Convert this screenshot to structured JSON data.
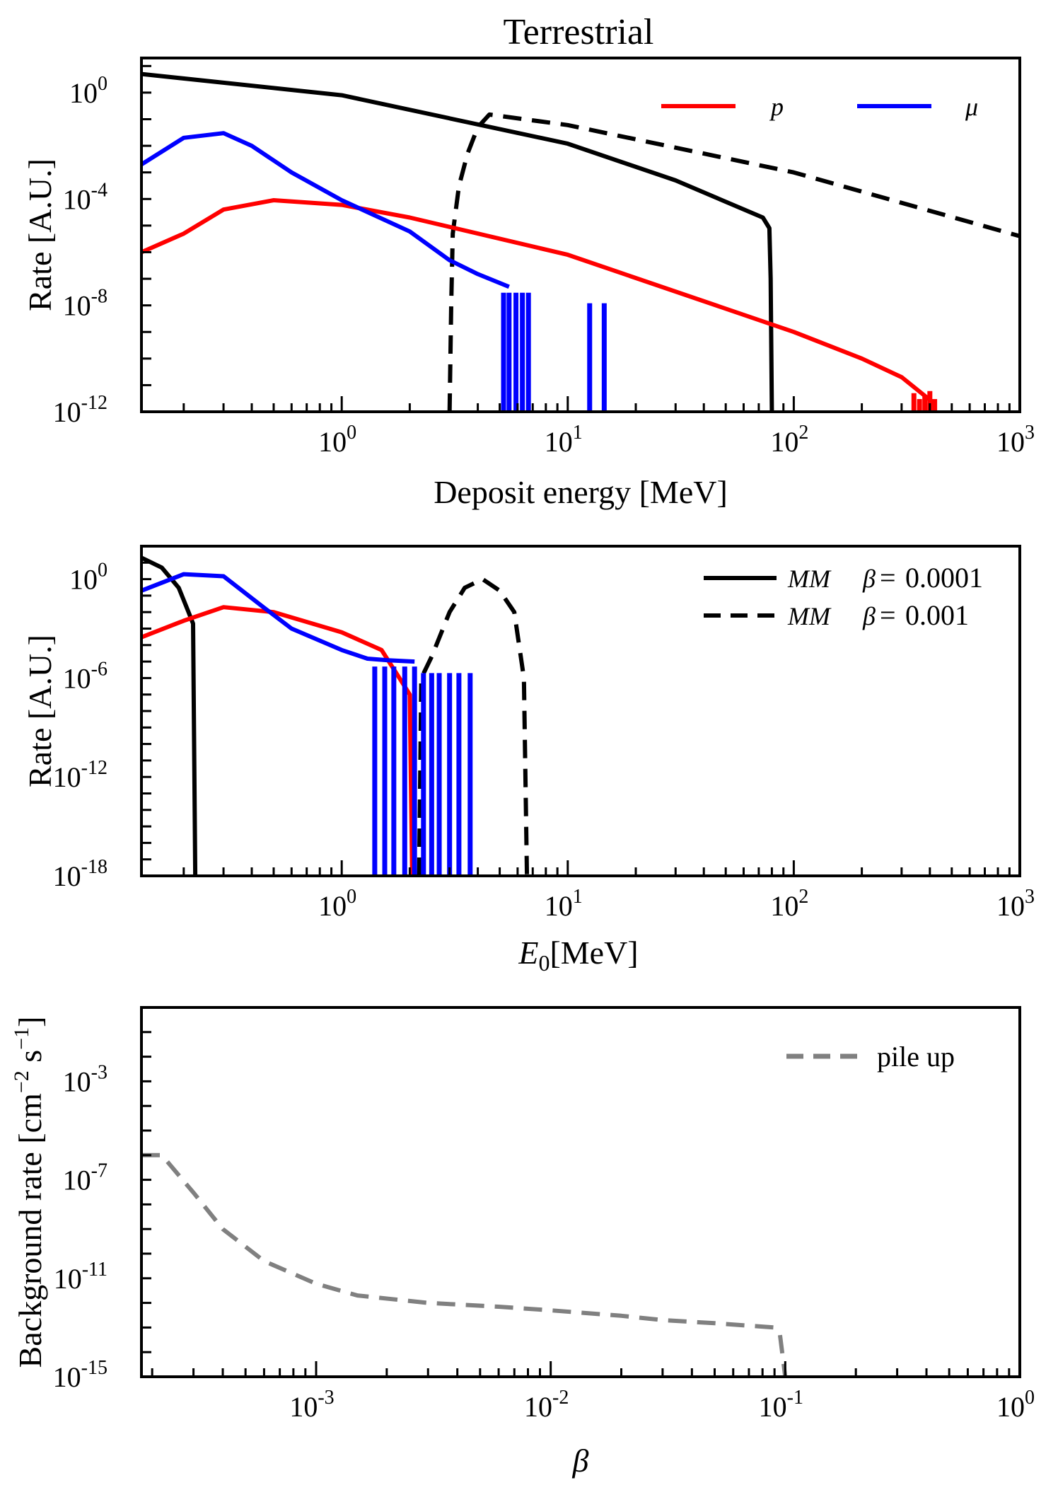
{
  "chart_data": [
    {
      "type": "line",
      "title": "Terrestrial",
      "xlabel": "Deposit energy [MeV]",
      "ylabel": "Rate [A.U.]",
      "xscale": "log",
      "yscale": "log",
      "xlim": [
        0.13,
        1000
      ],
      "ylim": [
        1e-12,
        20
      ],
      "xticks": [
        1,
        10,
        100,
        1000
      ],
      "xtick_labels": [
        {
          "base": "10",
          "exp": "0"
        },
        {
          "base": "10",
          "exp": "1"
        },
        {
          "base": "10",
          "exp": "2"
        },
        {
          "base": "10",
          "exp": "3"
        }
      ],
      "yticks": [
        1e-12,
        1e-08,
        0.0001,
        1
      ],
      "ytick_labels": [
        {
          "base": "10",
          "exp": "-12"
        },
        {
          "base": "10",
          "exp": "-8"
        },
        {
          "base": "10",
          "exp": "-4"
        },
        {
          "base": "10",
          "exp": "0"
        }
      ],
      "legend": {
        "position": "top-right",
        "entries": [
          {
            "label": "p",
            "color": "#ff0000",
            "style": "solid"
          },
          {
            "label": "μ",
            "color": "#0000ff",
            "style": "solid"
          }
        ]
      },
      "series": [
        {
          "key": "mm1",
          "color": "#000000",
          "style": "solid",
          "points": [
            [
              0.13,
              5
            ],
            [
              1,
              0.8
            ],
            [
              10,
              0.012
            ],
            [
              30,
              0.0005
            ],
            [
              73,
              2e-05
            ],
            [
              78,
              8e-06
            ],
            [
              79,
              1e-07
            ],
            [
              80,
              1e-12
            ]
          ]
        },
        {
          "key": "mm2",
          "color": "#000000",
          "style": "dashed",
          "points": [
            [
              3.0,
              1e-12
            ],
            [
              3.05,
              1e-08
            ],
            [
              3.1,
              5e-06
            ],
            [
              3.3,
              0.0003
            ],
            [
              3.6,
              0.005
            ],
            [
              4.0,
              0.05
            ],
            [
              4.5,
              0.15
            ],
            [
              10,
              0.06
            ],
            [
              100,
              0.001
            ],
            [
              1000,
              4e-06
            ]
          ]
        },
        {
          "key": "p",
          "color": "#ff0000",
          "style": "solid",
          "points": [
            [
              0.13,
              1e-06
            ],
            [
              0.2,
              5e-06
            ],
            [
              0.3,
              4e-05
            ],
            [
              0.5,
              9e-05
            ],
            [
              1,
              6e-05
            ],
            [
              2,
              2e-05
            ],
            [
              10,
              8e-07
            ],
            [
              100,
              1e-09
            ],
            [
              200,
              1e-10
            ],
            [
              300,
              2e-11
            ],
            [
              420,
              2e-12
            ]
          ],
          "spikes": [
            [
              340,
              5e-12
            ],
            [
              360,
              3e-12
            ],
            [
              380,
              4e-12
            ],
            [
              400,
              6e-12
            ],
            [
              420,
              3e-12
            ]
          ]
        },
        {
          "key": "mu",
          "color": "#0000ff",
          "style": "solid",
          "points": [
            [
              0.13,
              0.002
            ],
            [
              0.2,
              0.02
            ],
            [
              0.3,
              0.03
            ],
            [
              0.4,
              0.01
            ],
            [
              0.6,
              0.001
            ],
            [
              1,
              9e-05
            ],
            [
              2,
              6e-06
            ],
            [
              3,
              5e-07
            ],
            [
              4,
              1.5e-07
            ],
            [
              5.5,
              5e-08
            ]
          ],
          "spikes": [
            [
              5.2,
              3e-08
            ],
            [
              5.5,
              3e-08
            ],
            [
              5.9,
              3e-08
            ],
            [
              6.3,
              3e-08
            ],
            [
              6.7,
              3e-08
            ],
            [
              12.5,
              1.2e-08
            ],
            [
              14.5,
              1.2e-08
            ]
          ]
        }
      ]
    },
    {
      "type": "line",
      "xlabel_main": "E",
      "xlabel_sub": "0",
      "xlabel_rest": "[MeV]",
      "ylabel": "Rate [A.U.]",
      "xscale": "log",
      "yscale": "log",
      "xlim": [
        0.13,
        1000
      ],
      "ylim": [
        1e-18,
        100
      ],
      "xticks": [
        1,
        10,
        100,
        1000
      ],
      "xtick_labels": [
        {
          "base": "10",
          "exp": "0"
        },
        {
          "base": "10",
          "exp": "1"
        },
        {
          "base": "10",
          "exp": "2"
        },
        {
          "base": "10",
          "exp": "3"
        }
      ],
      "yticks": [
        1e-18,
        1e-12,
        1e-06,
        1
      ],
      "ytick_labels": [
        {
          "base": "10",
          "exp": "-18"
        },
        {
          "base": "10",
          "exp": "-12"
        },
        {
          "base": "10",
          "exp": "-6"
        },
        {
          "base": "10",
          "exp": "0"
        }
      ],
      "legend": {
        "position": "top-right",
        "entries": [
          {
            "label_it": "MM",
            "label_beta": "β",
            "label_eq": "=",
            "label_val": "0.0001",
            "color": "#000000",
            "style": "solid"
          },
          {
            "label_it": "MM",
            "label_beta": "β",
            "label_eq": "=",
            "label_val": "0.001",
            "color": "#000000",
            "style": "dashed"
          }
        ]
      },
      "series": [
        {
          "key": "mm1",
          "color": "#000000",
          "style": "solid",
          "points": [
            [
              0.13,
              20
            ],
            [
              0.16,
              5
            ],
            [
              0.19,
              0.3
            ],
            [
              0.21,
              0.01
            ],
            [
              0.22,
              0.002
            ],
            [
              0.225,
              1e-18
            ]
          ]
        },
        {
          "key": "mm2",
          "color": "#000000",
          "style": "dashed",
          "points": [
            [
              2.2,
              1e-18
            ],
            [
              2.25,
              1e-06
            ],
            [
              2.5,
              2e-05
            ],
            [
              3,
              0.01
            ],
            [
              3.5,
              0.3
            ],
            [
              4.2,
              1
            ],
            [
              5,
              0.2
            ],
            [
              5.8,
              0.01
            ],
            [
              6.4,
              1e-06
            ],
            [
              6.6,
              1e-18
            ]
          ]
        },
        {
          "key": "p",
          "color": "#ff0000",
          "style": "solid",
          "points": [
            [
              0.13,
              0.0003
            ],
            [
              0.2,
              0.003
            ],
            [
              0.3,
              0.02
            ],
            [
              0.5,
              0.01
            ],
            [
              1,
              0.0006
            ],
            [
              1.5,
              5e-05
            ],
            [
              1.8,
              1e-06
            ],
            [
              2.0,
              1e-07
            ],
            [
              2.05,
              1e-18
            ]
          ]
        },
        {
          "key": "mu",
          "color": "#0000ff",
          "style": "solid",
          "points": [
            [
              0.13,
              0.2
            ],
            [
              0.2,
              2
            ],
            [
              0.3,
              1.5
            ],
            [
              0.45,
              0.02
            ],
            [
              0.6,
              0.001
            ],
            [
              1,
              5e-05
            ],
            [
              1.3,
              1.5e-05
            ],
            [
              1.6,
              1.2e-05
            ],
            [
              2.1,
              1e-05
            ]
          ],
          "spikes": [
            [
              1.4,
              5e-06
            ],
            [
              1.55,
              5e-06
            ],
            [
              1.7,
              5e-06
            ],
            [
              1.9,
              5e-06
            ],
            [
              2.1,
              5e-06
            ],
            [
              2.3,
              2e-06
            ],
            [
              2.5,
              2e-06
            ],
            [
              2.7,
              2e-06
            ],
            [
              3.0,
              2e-06
            ],
            [
              3.3,
              2e-06
            ],
            [
              3.7,
              2e-06
            ]
          ]
        }
      ]
    },
    {
      "type": "line",
      "xlabel": "β",
      "ylabel_main": "Background rate [cm",
      "ylabel_exp1": "−2",
      "ylabel_mid": " s",
      "ylabel_exp2": "−1",
      "ylabel_end": "]",
      "xscale": "log",
      "yscale": "log",
      "xlim": [
        0.00018,
        1
      ],
      "ylim": [
        1e-15,
        1
      ],
      "xticks": [
        0.001,
        0.01,
        0.1,
        1
      ],
      "xtick_labels": [
        {
          "base": "10",
          "exp": "-3"
        },
        {
          "base": "10",
          "exp": "-2"
        },
        {
          "base": "10",
          "exp": "-1"
        },
        {
          "base": "10",
          "exp": "0"
        }
      ],
      "yticks": [
        1e-15,
        1e-11,
        1e-07,
        0.001
      ],
      "ytick_labels": [
        {
          "base": "10",
          "exp": "-15"
        },
        {
          "base": "10",
          "exp": "-11"
        },
        {
          "base": "10",
          "exp": "-7"
        },
        {
          "base": "10",
          "exp": "-3"
        }
      ],
      "legend": {
        "position": "top-right",
        "entries": [
          {
            "label": "pile up",
            "color": "#808080",
            "style": "dashed"
          }
        ]
      },
      "series": [
        {
          "key": "pile",
          "color": "#808080",
          "style": "dashed",
          "points": [
            [
              0.00018,
              1e-06
            ],
            [
              0.00022,
              1e-06
            ],
            [
              0.0003,
              3e-08
            ],
            [
              0.0004,
              1e-09
            ],
            [
              0.0006,
              5e-11
            ],
            [
              0.001,
              6e-12
            ],
            [
              0.0015,
              2e-12
            ],
            [
              0.003,
              1e-12
            ],
            [
              0.006,
              7e-13
            ],
            [
              0.01,
              5e-13
            ],
            [
              0.02,
              3e-13
            ],
            [
              0.03,
              2e-13
            ],
            [
              0.05,
              1.5e-13
            ],
            [
              0.09,
              1e-13
            ],
            [
              0.095,
              5e-14
            ],
            [
              0.1,
              1e-15
            ]
          ]
        }
      ]
    }
  ]
}
